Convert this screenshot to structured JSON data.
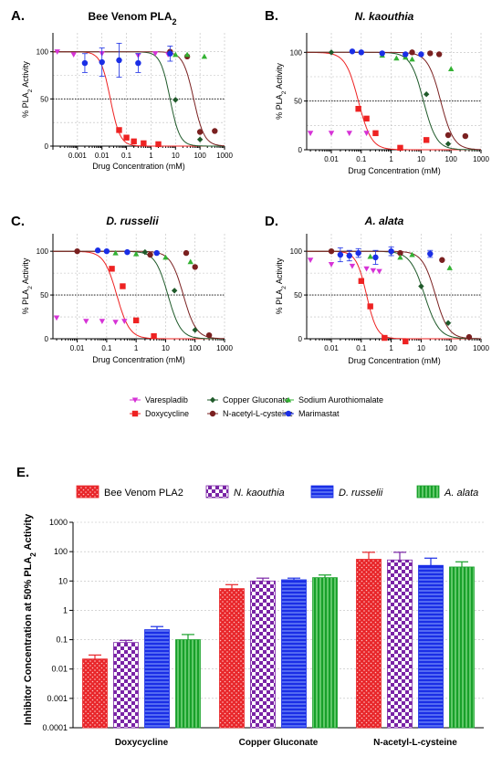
{
  "chart_data": [
    {
      "type": "scatter",
      "panel_letter": "A.",
      "title_parts": [
        {
          "text": "Bee Venom PLA"
        },
        {
          "text": "2",
          "sub": true
        }
      ],
      "title_italic": false,
      "xlabel": "Drug Concentration (mM)",
      "ylabel_parts": [
        {
          "text": "% PLA"
        },
        {
          "text": "2",
          "sub": true
        },
        {
          "text": " Activity"
        }
      ],
      "x_scale": "log",
      "xlim": [
        0.0001,
        1000
      ],
      "ylim": [
        0,
        120
      ],
      "x_tick_labels": [
        "0.001",
        "0.01",
        "0.1",
        "1",
        "10",
        "100",
        "1000"
      ],
      "y_tick_labels": [
        "0",
        "50",
        "100"
      ],
      "grid": true,
      "series": [
        {
          "name": "Varespladib",
          "x": [
            0.00015,
            0.0007,
            0.01,
            0.3,
            1.5,
            5
          ],
          "y": [
            100,
            97,
            98,
            96,
            98,
            97
          ]
        },
        {
          "name": "Doxycycline",
          "x": [
            0.05,
            0.1,
            0.2,
            0.5,
            2
          ],
          "y": [
            17,
            9,
            5,
            3,
            2
          ]
        },
        {
          "name": "Copper Gluconate",
          "x": [
            10,
            100
          ],
          "y": [
            49,
            7
          ]
        },
        {
          "name": "N-acetyl-L-cysteine",
          "x": [
            6,
            30,
            100,
            400
          ],
          "y": [
            100,
            95,
            15,
            16
          ]
        },
        {
          "name": "Sodium Aurothiomalate",
          "x": [
            10,
            30,
            150
          ],
          "y": [
            97,
            97,
            95
          ]
        },
        {
          "name": "Marimastat",
          "x": [
            0.002,
            0.01,
            0.05,
            0.3,
            6
          ],
          "y": [
            88,
            89,
            91,
            88,
            98
          ],
          "err": [
            10,
            15,
            18,
            10,
            8
          ]
        }
      ],
      "fits": [
        {
          "name": "Doxycycline",
          "ic50": 0.022,
          "hill": 2.2
        },
        {
          "name": "Copper Gluconate",
          "ic50": 6,
          "hill": 2.2
        },
        {
          "name": "N-acetyl-L-cysteine",
          "ic50": 55,
          "hill": 2.0
        }
      ]
    },
    {
      "type": "scatter",
      "panel_letter": "B.",
      "title_parts": [
        {
          "text": "N. kaouthia"
        }
      ],
      "title_italic": true,
      "xlabel": "Drug Concentration (mM)",
      "ylabel_parts": [
        {
          "text": "% PLA"
        },
        {
          "text": "2",
          "sub": true
        },
        {
          "text": " Activity"
        }
      ],
      "x_scale": "log",
      "xlim": [
        0.0015,
        1000
      ],
      "ylim": [
        0,
        120
      ],
      "x_tick_labels": [
        "0.01",
        "0.1",
        "1",
        "10",
        "100",
        "1000"
      ],
      "y_tick_labels": [
        "0",
        "50",
        "100"
      ],
      "grid": true,
      "series": [
        {
          "name": "Varespladib",
          "x": [
            0.002,
            0.01,
            0.04,
            0.15
          ],
          "y": [
            17,
            17,
            17,
            17
          ]
        },
        {
          "name": "Doxycycline",
          "x": [
            0.08,
            0.15,
            0.3,
            2,
            15
          ],
          "y": [
            42,
            32,
            17,
            2,
            10
          ]
        },
        {
          "name": "Copper Gluconate",
          "x": [
            0.01,
            15,
            80
          ],
          "y": [
            100,
            57,
            6
          ]
        },
        {
          "name": "N-acetyl-L-cysteine",
          "x": [
            5,
            20,
            40,
            80,
            300
          ],
          "y": [
            100,
            99,
            98,
            15,
            14
          ]
        },
        {
          "name": "Sodium Aurothiomalate",
          "x": [
            0.5,
            1.5,
            3,
            5,
            100
          ],
          "y": [
            97,
            94,
            95,
            93,
            83
          ]
        },
        {
          "name": "Marimastat",
          "x": [
            0.05,
            0.1,
            0.5,
            3,
            10
          ],
          "y": [
            101,
            100,
            99,
            98,
            98
          ]
        }
      ],
      "fits": [
        {
          "name": "Doxycycline",
          "ic50": 0.08,
          "hill": 2.0
        },
        {
          "name": "Copper Gluconate",
          "ic50": 12,
          "hill": 2.0
        },
        {
          "name": "N-acetyl-L-cysteine",
          "ic50": 45,
          "hill": 2.0
        }
      ]
    },
    {
      "type": "scatter",
      "panel_letter": "C.",
      "title_parts": [
        {
          "text": "D. russelii"
        }
      ],
      "title_italic": true,
      "xlabel": "Drug Concentration (mM)",
      "ylabel_parts": [
        {
          "text": "% PLA"
        },
        {
          "text": "2",
          "sub": true
        },
        {
          "text": " Activity"
        }
      ],
      "x_scale": "log",
      "xlim": [
        0.0015,
        1000
      ],
      "ylim": [
        0,
        120
      ],
      "x_tick_labels": [
        "0.01",
        "0.1",
        "1",
        "10",
        "100",
        "1000"
      ],
      "y_tick_labels": [
        "0",
        "50",
        "100"
      ],
      "grid": true,
      "series": [
        {
          "name": "Varespladib",
          "x": [
            0.002,
            0.02,
            0.07,
            0.2,
            0.4
          ],
          "y": [
            24,
            20,
            20,
            19,
            20
          ]
        },
        {
          "name": "Doxycycline",
          "x": [
            0.15,
            0.35,
            1,
            4
          ],
          "y": [
            80,
            60,
            21,
            3
          ]
        },
        {
          "name": "Copper Gluconate",
          "x": [
            0.01,
            2,
            20,
            100
          ],
          "y": [
            100,
            99,
            55,
            10
          ]
        },
        {
          "name": "N-acetyl-L-cysteine",
          "x": [
            0.01,
            3,
            50,
            100,
            300
          ],
          "y": [
            100,
            96,
            98,
            82,
            4
          ]
        },
        {
          "name": "Sodium Aurothiomalate",
          "x": [
            0.2,
            1,
            10,
            70
          ],
          "y": [
            98,
            97,
            93,
            88
          ]
        },
        {
          "name": "Marimastat",
          "x": [
            0.05,
            0.1,
            0.5,
            5
          ],
          "y": [
            101,
            100,
            99,
            98
          ]
        }
      ],
      "fits": [
        {
          "name": "Doxycycline",
          "ic50": 0.22,
          "hill": 2.0
        },
        {
          "name": "Copper Gluconate",
          "ic50": 12,
          "hill": 2.0
        },
        {
          "name": "N-acetyl-L-cysteine",
          "ic50": 40,
          "hill": 2.0
        }
      ]
    },
    {
      "type": "scatter",
      "panel_letter": "D.",
      "title_parts": [
        {
          "text": "A. alata"
        }
      ],
      "title_italic": true,
      "xlabel": "Drug Concentration (mM)",
      "ylabel_parts": [
        {
          "text": "% PLA"
        },
        {
          "text": "2",
          "sub": true
        },
        {
          "text": " Activity"
        }
      ],
      "x_scale": "log",
      "xlim": [
        0.0015,
        1000
      ],
      "ylim": [
        0,
        120
      ],
      "x_tick_labels": [
        "0.01",
        "0.1",
        "1",
        "10",
        "100",
        "1000"
      ],
      "y_tick_labels": [
        "0",
        "50",
        "100"
      ],
      "grid": true,
      "series": [
        {
          "name": "Varespladib",
          "x": [
            0.002,
            0.01,
            0.05,
            0.15,
            0.25,
            0.4
          ],
          "y": [
            90,
            85,
            83,
            80,
            78,
            77
          ]
        },
        {
          "name": "Doxycycline",
          "x": [
            0.1,
            0.2,
            0.6,
            3
          ],
          "y": [
            66,
            37,
            1,
            -3
          ]
        },
        {
          "name": "Copper Gluconate",
          "x": [
            0.01,
            1,
            10,
            80
          ],
          "y": [
            100,
            99,
            60,
            18
          ]
        },
        {
          "name": "N-acetyl-L-cysteine",
          "x": [
            0.01,
            2,
            50,
            400
          ],
          "y": [
            100,
            98,
            90,
            2
          ]
        },
        {
          "name": "Sodium Aurothiomalate",
          "x": [
            0.2,
            2,
            5,
            90
          ],
          "y": [
            94,
            93,
            96,
            81
          ]
        },
        {
          "name": "Marimastat",
          "x": [
            0.02,
            0.04,
            0.08,
            0.3,
            1,
            20
          ],
          "y": [
            96,
            95,
            98,
            93,
            100,
            97
          ],
          "err": [
            8,
            6,
            5,
            8,
            5,
            4
          ]
        }
      ],
      "fits": [
        {
          "name": "Doxycycline",
          "ic50": 0.15,
          "hill": 2.5
        },
        {
          "name": "Copper Gluconate",
          "ic50": 13,
          "hill": 1.8
        },
        {
          "name": "N-acetyl-L-cysteine",
          "ic50": 30,
          "hill": 2.0
        }
      ]
    },
    {
      "type": "bar",
      "panel_letter": "E.",
      "categories": [
        "Doxycycline",
        "Copper Gluconate",
        "N-acetyl-L-cysteine"
      ],
      "ylabel_parts": [
        {
          "text": "Inhibitor Concentration at 50% PLA"
        },
        {
          "text": "2",
          "sub": true
        },
        {
          "text": " Activity"
        }
      ],
      "y_scale": "log",
      "ylim": [
        0.0001,
        1000
      ],
      "y_tick_labels": [
        "0.0001",
        "0.001",
        "0.01",
        "0.1",
        "1",
        "10",
        "100",
        "1000"
      ],
      "grid": true,
      "series": [
        {
          "name": "Bee Venom PLA2",
          "italic": false,
          "values": [
            0.022,
            5.5,
            55
          ],
          "err_upper": [
            0.03,
            7.5,
            95
          ]
        },
        {
          "name": "N. kaouthia",
          "italic": true,
          "values": [
            0.08,
            10,
            52
          ],
          "err_upper": [
            0.095,
            12.5,
            95
          ]
        },
        {
          "name": "D. russelii",
          "italic": true,
          "values": [
            0.22,
            11,
            34
          ],
          "err_upper": [
            0.28,
            12.5,
            60
          ]
        },
        {
          "name": "A. alata",
          "italic": true,
          "values": [
            0.1,
            13,
            30
          ],
          "err_upper": [
            0.15,
            16,
            45
          ]
        }
      ]
    }
  ],
  "legend": [
    {
      "label": "Varespladib",
      "color": "#d633d6",
      "marker": "triangle-down"
    },
    {
      "label": "Doxycycline",
      "color": "#ee2222",
      "marker": "square"
    },
    {
      "label": "Copper Gluconate",
      "color": "#1f5a2a",
      "marker": "diamond"
    },
    {
      "label": "N-acetyl-L-cysteine",
      "color": "#7a2020",
      "marker": "circle"
    },
    {
      "label": "Sodium Aurothiomalate",
      "color": "#33b233",
      "marker": "triangle-up"
    },
    {
      "label": "Marimastat",
      "color": "#1a2ee6",
      "marker": "circle"
    }
  ],
  "colors": {
    "bee_red": "#e8262a",
    "kaouthia_purple": "#7a24a6",
    "russelii_blue": "#1a2ee6",
    "alata_green": "#18a02a"
  }
}
